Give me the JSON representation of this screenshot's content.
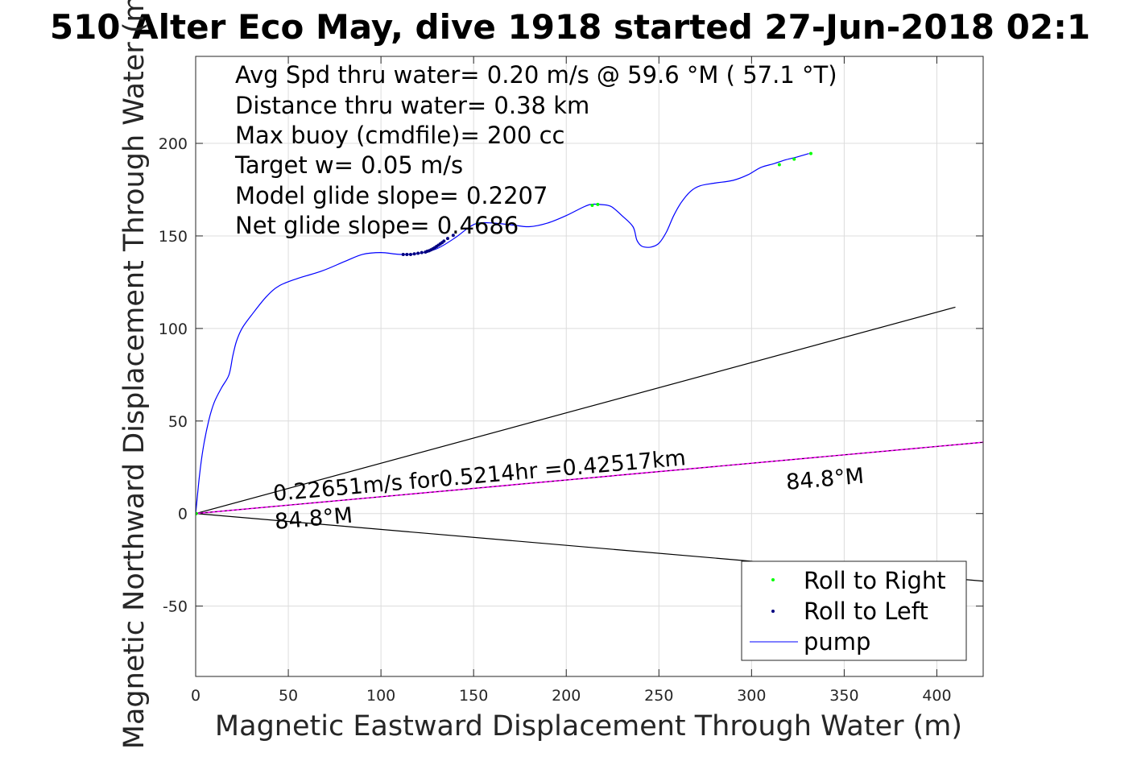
{
  "chart_data": {
    "type": "line",
    "title": "510 Alter Eco May, dive 1918 started 27-Jun-2018 02:1",
    "xlabel": "Magnetic Eastward Displacement Through Water (m)",
    "ylabel": "Magnetic Northward Displacement Through Water (m)",
    "xlim": [
      0,
      425
    ],
    "ylim": [
      -88,
      247
    ],
    "xticks": [
      0,
      50,
      100,
      150,
      200,
      250,
      300,
      350,
      400
    ],
    "yticks": [
      -50,
      0,
      50,
      100,
      150,
      200
    ],
    "grid": true,
    "info_lines": [
      "Avg Spd thru water=  0.20 m/s @  59.6 °M ( 57.1 °T)",
      "Distance thru water=  0.38 km",
      "Max buoy (cmdfile)= 200 cc",
      "Target w= 0.05 m/s",
      "Model glide slope= 0.2207",
      "Net glide slope= 0.4686"
    ],
    "annotations": {
      "current_text": "0.22651m/s for0.5214hr =0.42517km",
      "heading_left": "84.8°M",
      "heading_right": "84.8°M"
    },
    "legend": {
      "position": "bottom-right",
      "entries": [
        "Roll to Right",
        "Roll to Left",
        "pump"
      ]
    },
    "colors": {
      "track": "#0000ff",
      "roll_right": "#00ff00",
      "roll_left": "#000080",
      "current": "#ff00ff",
      "lines": "#000000"
    },
    "series": [
      {
        "name": "pump",
        "type": "line",
        "x": [
          0,
          2,
          4,
          7,
          10,
          14,
          18,
          20,
          22,
          25,
          30,
          38,
          45,
          55,
          68,
          80,
          90,
          100,
          110,
          120,
          130,
          140,
          148,
          153,
          160,
          170,
          180,
          190,
          200,
          208,
          213,
          218,
          224,
          230,
          236,
          238,
          240,
          242,
          246,
          250,
          254,
          258,
          262,
          267,
          272,
          280,
          290,
          298,
          305,
          312,
          318,
          324,
          331
        ],
        "y": [
          0,
          20,
          35,
          50,
          60,
          68,
          75,
          85,
          93,
          100,
          107,
          117,
          123,
          127,
          131,
          136,
          140,
          141,
          140,
          140.5,
          143,
          149,
          155,
          157,
          157,
          156,
          155,
          157,
          161,
          165,
          167,
          167,
          166,
          161,
          155,
          148,
          145,
          144,
          144,
          146,
          152,
          161,
          168,
          174,
          177,
          178.5,
          180,
          183,
          187,
          189,
          191,
          192.5,
          194.5
        ]
      },
      {
        "name": "Roll to Right",
        "type": "scatter",
        "x": [
          0.3,
          152,
          214,
          217,
          315,
          323,
          332
        ],
        "y": [
          0,
          156.5,
          166.5,
          167,
          188.5,
          191.5,
          194.5
        ]
      },
      {
        "name": "Roll to Left",
        "type": "scatter",
        "x": [
          112,
          114,
          116,
          118,
          120,
          122,
          124,
          125,
          126,
          127,
          128,
          129,
          130,
          131,
          132,
          133,
          134,
          136,
          139
        ],
        "y": [
          140,
          140,
          140,
          140.3,
          140.6,
          141,
          141.3,
          141.7,
          142,
          142.5,
          143,
          143.6,
          144.3,
          145,
          145.7,
          146.4,
          147.2,
          148.6,
          150.3
        ]
      },
      {
        "name": "heading line upper",
        "type": "line",
        "x": [
          0,
          410
        ],
        "y": [
          0,
          111.5
        ]
      },
      {
        "name": "heading line lower",
        "type": "line",
        "x": [
          0,
          425
        ],
        "y": [
          0,
          -36.5
        ]
      },
      {
        "name": "current",
        "type": "line",
        "x": [
          0,
          425
        ],
        "y": [
          0,
          38.5
        ]
      }
    ]
  }
}
